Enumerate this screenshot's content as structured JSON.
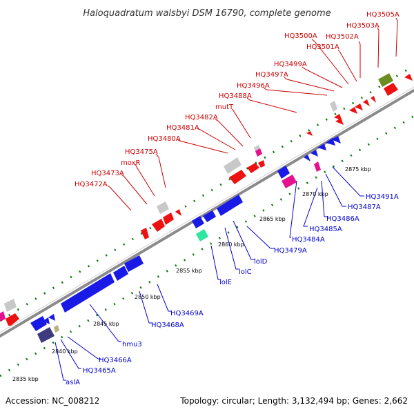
{
  "title": "Haloquadratum walsbyi DSM 16790, complete genome",
  "footer": {
    "accession": "Accession: NC_008212",
    "summary": "Topology: circular; Length: 3,132,494 bp; Genes: 2,662"
  },
  "colors": {
    "forward_label": "#cc0000",
    "reverse_label": "#0000cc",
    "backbone": "#808080",
    "tick_forward": "#008000",
    "feature_red": "#ee1111",
    "feature_blue": "#1a1ae6",
    "feature_gray": "#c8c8c8",
    "feature_magenta": "#e6118f",
    "feature_olive": "#6b8e23",
    "feature_navy": "#3d3a80",
    "feature_teal": "#2ee6a0",
    "feature_khaki": "#b8b080"
  },
  "kbp_labels": [
    "2835 kbp",
    "2840 kbp",
    "2845 kbp",
    "2850 kbp",
    "2855 kbp",
    "2860 kbp",
    "2865 kbp",
    "2870 kbp",
    "2875 kbp"
  ],
  "forward_labels": [
    "HQ3505A",
    "HQ3503A",
    "HQ3502A",
    "HQ3500A",
    "HQ3501A",
    "HQ3499A",
    "HQ3497A",
    "HQ3496A",
    "HQ3488A",
    "mutT",
    "HQ3482A",
    "HQ3481A",
    "HQ3480A",
    "HQ3475A",
    "moxR",
    "HQ3473A",
    "HQ3472A"
  ],
  "reverse_labels": [
    "HQ3491A",
    "HQ3487A",
    "HQ3486A",
    "HQ3485A",
    "HQ3484A",
    "HQ3479A",
    "lolD",
    "lolC",
    "lolE",
    "HQ3469A",
    "HQ3468A",
    "hmu3",
    "HQ3466A",
    "HQ3465A",
    "aslA"
  ]
}
